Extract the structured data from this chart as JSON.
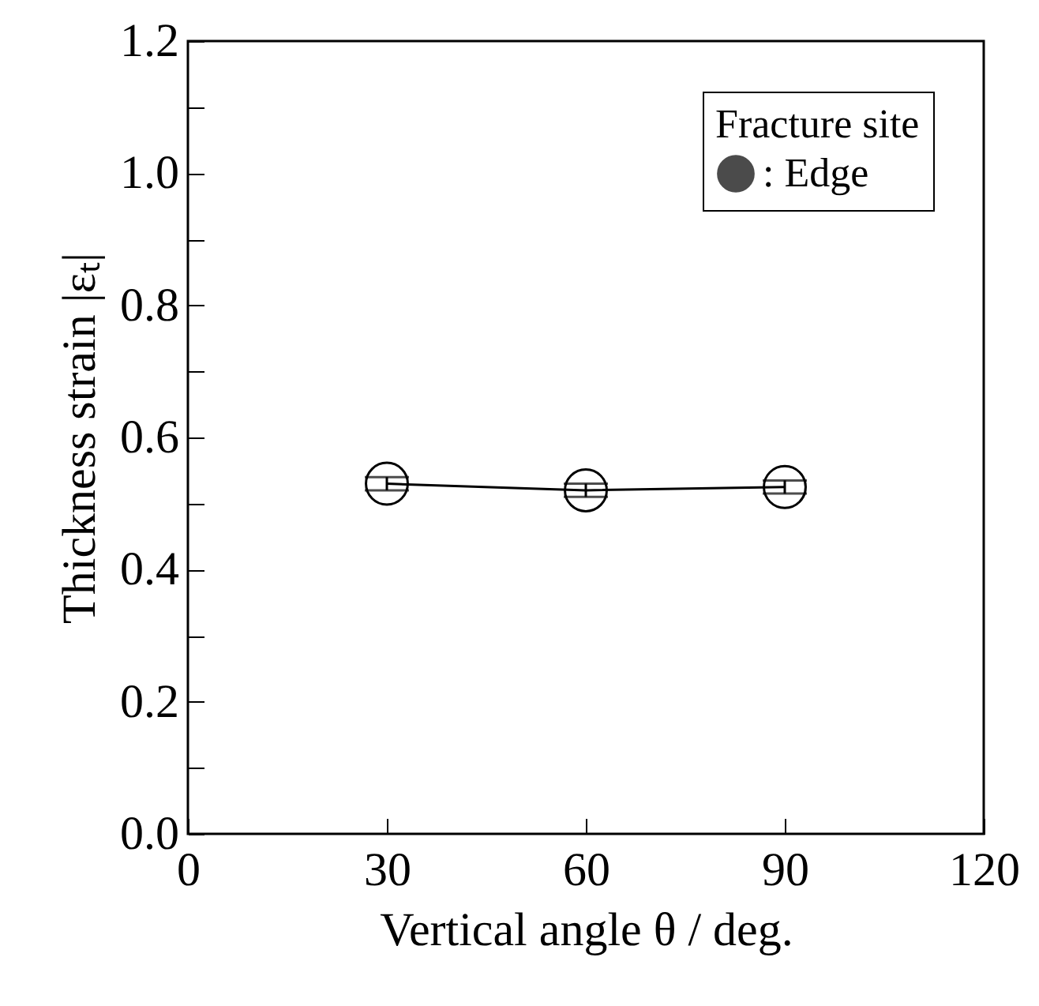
{
  "chart_data": {
    "type": "line",
    "xlabel": "Vertical angle  θ / deg.",
    "ylabel": "Thickness strain |εₜ|",
    "legend_title": "Fracture site",
    "x": [
      30,
      60,
      90
    ],
    "series": [
      {
        "name": ": Edge",
        "color": "#000000",
        "values": [
          0.53,
          0.52,
          0.525
        ],
        "errors": [
          0.01,
          0.01,
          0.01
        ]
      }
    ],
    "xlim": [
      0,
      120
    ],
    "xticks": [
      0,
      30,
      60,
      90,
      120
    ],
    "ylim": [
      0,
      1.2
    ],
    "yticks": [
      {
        "value": 0,
        "label": "0.0"
      },
      {
        "value": 0.1,
        "label": null
      },
      {
        "value": 0.2,
        "label": "0.2"
      },
      {
        "value": 0.3,
        "label": null
      },
      {
        "value": 0.4,
        "label": "0.4"
      },
      {
        "value": 0.5,
        "label": null
      },
      {
        "value": 0.6,
        "label": "0.6"
      },
      {
        "value": 0.7,
        "label": null
      },
      {
        "value": 0.8,
        "label": "0.8"
      },
      {
        "value": 0.9,
        "label": null
      },
      {
        "value": 1.0,
        "label": "1.0"
      },
      {
        "value": 1.1,
        "label": null
      },
      {
        "value": 1.2,
        "label": "1.2"
      }
    ],
    "marker": "circle",
    "line_style": "solid",
    "legend": "top right",
    "grid": false
  }
}
